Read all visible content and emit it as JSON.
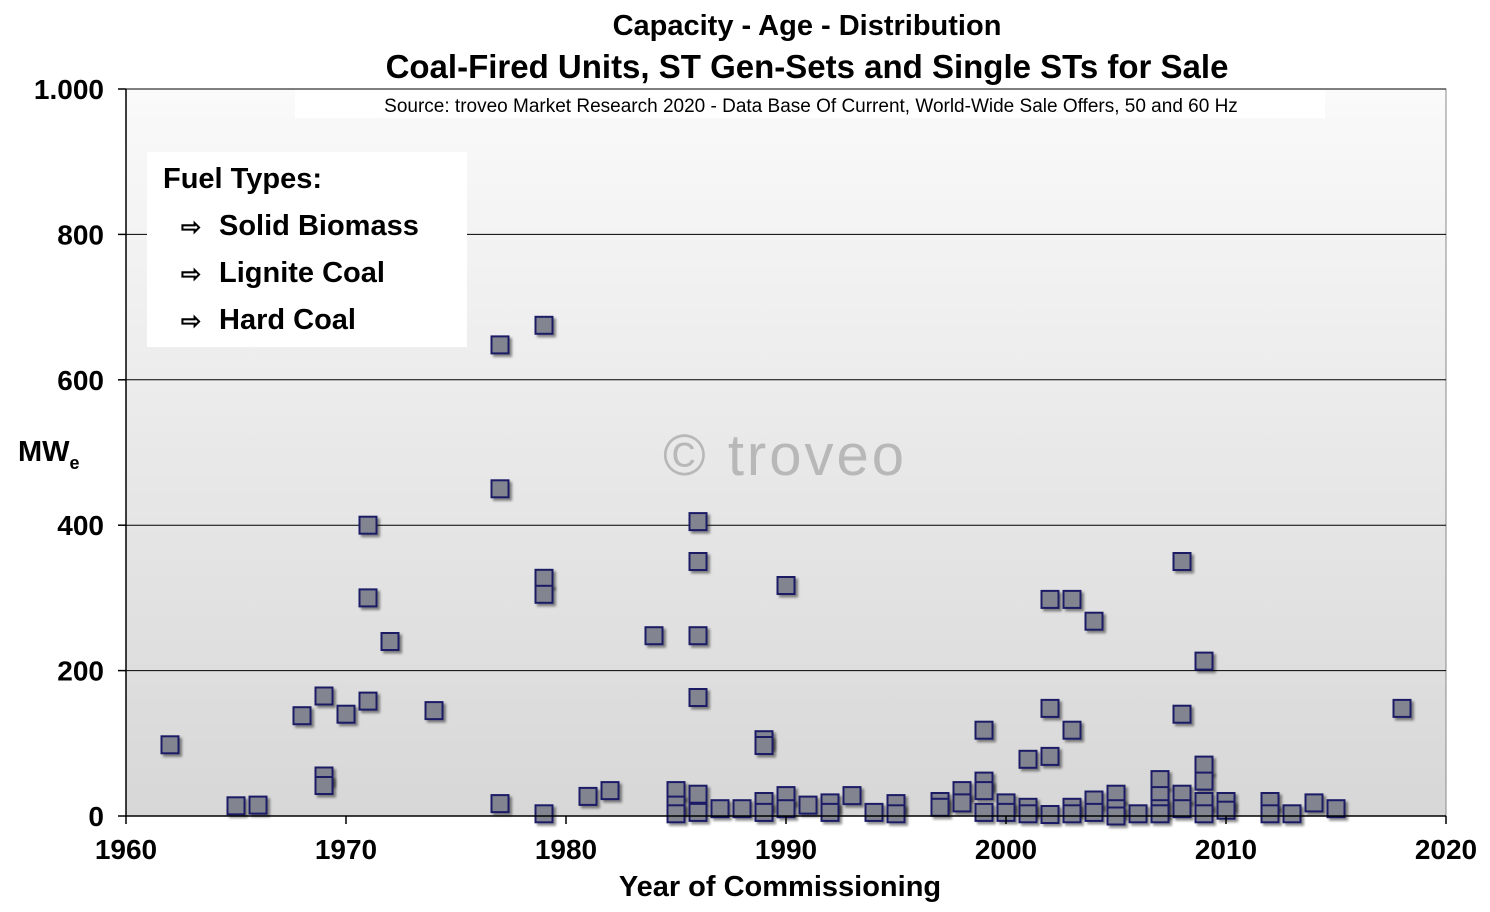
{
  "chart_data": {
    "type": "scatter",
    "title": "Capacity - Age - Distribution",
    "subtitle": "Coal-Fired Units, ST Gen-Sets and Single STs for Sale",
    "source": "Source: troveo Market Research 2020 - Data Base Of Current, World-Wide Sale Offers, 50 and 60 Hz",
    "watermark": "© troveo",
    "xlabel": "Year of Commissioning",
    "ylabel": "MW",
    "ylabel_sub": "e",
    "xlim": [
      1960,
      2020
    ],
    "ylim": [
      0,
      1000
    ],
    "x_ticks": [
      {
        "value": 1960,
        "label": "1960"
      },
      {
        "value": 1970,
        "label": "1970"
      },
      {
        "value": 1980,
        "label": "1980"
      },
      {
        "value": 1990,
        "label": "1990"
      },
      {
        "value": 2000,
        "label": "2000"
      },
      {
        "value": 2010,
        "label": "2010"
      },
      {
        "value": 2020,
        "label": "2020"
      }
    ],
    "y_ticks": [
      {
        "value": 0,
        "label": "0"
      },
      {
        "value": 200,
        "label": "200"
      },
      {
        "value": 400,
        "label": "400"
      },
      {
        "value": 600,
        "label": "600"
      },
      {
        "value": 800,
        "label": "800"
      },
      {
        "value": 1000,
        "label": "1.000"
      }
    ],
    "grid": true,
    "legend": {
      "title": "Fuel Types:",
      "placement": "top-left",
      "items": [
        "Solid Biomass",
        "Lignite Coal",
        "Hard Coal"
      ],
      "arrow": "⇨"
    },
    "colors": {
      "marker_fill": "#828490",
      "marker_stroke": "#1c1c66"
    },
    "points": [
      [
        1962,
        98
      ],
      [
        1965,
        14
      ],
      [
        1966,
        15
      ],
      [
        1968,
        138
      ],
      [
        1969,
        165
      ],
      [
        1969,
        55
      ],
      [
        1969,
        42
      ],
      [
        1970,
        140
      ],
      [
        1971,
        400
      ],
      [
        1971,
        300
      ],
      [
        1971,
        158
      ],
      [
        1972,
        240
      ],
      [
        1974,
        145
      ],
      [
        1977,
        648
      ],
      [
        1977,
        450
      ],
      [
        1977,
        17
      ],
      [
        1979,
        675
      ],
      [
        1979,
        327
      ],
      [
        1979,
        305
      ],
      [
        1979,
        3
      ],
      [
        1981,
        27
      ],
      [
        1982,
        35
      ],
      [
        1984,
        248
      ],
      [
        1985,
        35
      ],
      [
        1985,
        15
      ],
      [
        1985,
        3
      ],
      [
        1986,
        405
      ],
      [
        1986,
        350
      ],
      [
        1986,
        248
      ],
      [
        1986,
        163
      ],
      [
        1986,
        30
      ],
      [
        1986,
        5
      ],
      [
        1987,
        10
      ],
      [
        1988,
        10
      ],
      [
        1989,
        105
      ],
      [
        1989,
        97
      ],
      [
        1989,
        20
      ],
      [
        1989,
        5
      ],
      [
        1990,
        317
      ],
      [
        1990,
        28
      ],
      [
        1990,
        10
      ],
      [
        1991,
        15
      ],
      [
        1992,
        18
      ],
      [
        1992,
        5
      ],
      [
        1993,
        28
      ],
      [
        1994,
        5
      ],
      [
        1995,
        17
      ],
      [
        1995,
        3
      ],
      [
        1997,
        20
      ],
      [
        1997,
        12
      ],
      [
        1998,
        35
      ],
      [
        1998,
        18
      ],
      [
        1999,
        118
      ],
      [
        1999,
        48
      ],
      [
        1999,
        35
      ],
      [
        1999,
        5
      ],
      [
        2000,
        18
      ],
      [
        2000,
        5
      ],
      [
        2001,
        78
      ],
      [
        2001,
        12
      ],
      [
        2001,
        3
      ],
      [
        2002,
        298
      ],
      [
        2002,
        148
      ],
      [
        2002,
        82
      ],
      [
        2002,
        2
      ],
      [
        2003,
        298
      ],
      [
        2003,
        118
      ],
      [
        2003,
        12
      ],
      [
        2003,
        3
      ],
      [
        2004,
        268
      ],
      [
        2004,
        22
      ],
      [
        2004,
        5
      ],
      [
        2005,
        30
      ],
      [
        2005,
        10
      ],
      [
        2005,
        0
      ],
      [
        2006,
        3
      ],
      [
        2007,
        50
      ],
      [
        2007,
        28
      ],
      [
        2007,
        10
      ],
      [
        2007,
        3
      ],
      [
        2008,
        350
      ],
      [
        2008,
        140
      ],
      [
        2008,
        30
      ],
      [
        2008,
        10
      ],
      [
        2009,
        213
      ],
      [
        2009,
        70
      ],
      [
        2009,
        48
      ],
      [
        2009,
        20
      ],
      [
        2009,
        3
      ],
      [
        2010,
        20
      ],
      [
        2010,
        8
      ],
      [
        2012,
        20
      ],
      [
        2012,
        3
      ],
      [
        2013,
        3
      ],
      [
        2014,
        18
      ],
      [
        2015,
        10
      ],
      [
        2018,
        148
      ]
    ]
  }
}
